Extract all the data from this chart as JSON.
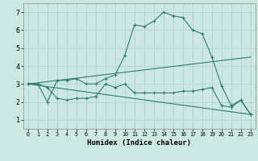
{
  "xlabel": "Humidex (Indice chaleur)",
  "background_color": "#cde8e4",
  "grid_color": "#b0d8d0",
  "line_color": "#2e7d6e",
  "xlim": [
    -0.5,
    23.5
  ],
  "ylim": [
    0.5,
    7.5
  ],
  "xticks": [
    0,
    1,
    2,
    3,
    4,
    5,
    6,
    7,
    8,
    9,
    10,
    11,
    12,
    13,
    14,
    15,
    16,
    17,
    18,
    19,
    20,
    21,
    22,
    23
  ],
  "yticks": [
    1,
    2,
    3,
    4,
    5,
    6,
    7
  ],
  "series": [
    {
      "x": [
        0,
        1,
        2,
        3,
        4,
        5,
        6,
        7,
        8,
        9,
        10,
        11,
        12,
        13,
        14,
        15,
        16,
        17,
        18,
        19,
        20,
        21,
        22,
        23
      ],
      "y": [
        3.0,
        3.0,
        2.0,
        3.2,
        3.2,
        3.3,
        3.0,
        3.0,
        3.3,
        3.5,
        4.6,
        6.3,
        6.2,
        6.5,
        7.0,
        6.8,
        6.7,
        6.0,
        5.8,
        4.5,
        2.9,
        1.8,
        2.1,
        1.3
      ],
      "marker": true
    },
    {
      "x": [
        0,
        1,
        2,
        3,
        4,
        5,
        6,
        7,
        8,
        9,
        10,
        11,
        12,
        13,
        14,
        15,
        16,
        17,
        18,
        19,
        20,
        21,
        22,
        23
      ],
      "y": [
        3.0,
        3.0,
        2.8,
        2.2,
        2.1,
        2.2,
        2.2,
        2.3,
        3.0,
        2.8,
        3.0,
        2.5,
        2.5,
        2.5,
        2.5,
        2.5,
        2.6,
        2.6,
        2.7,
        2.8,
        1.8,
        1.7,
        2.1,
        1.3
      ],
      "marker": true
    },
    {
      "x": [
        0,
        23
      ],
      "y": [
        3.0,
        4.5
      ],
      "marker": false
    },
    {
      "x": [
        0,
        23
      ],
      "y": [
        3.0,
        1.3
      ],
      "marker": false
    }
  ]
}
